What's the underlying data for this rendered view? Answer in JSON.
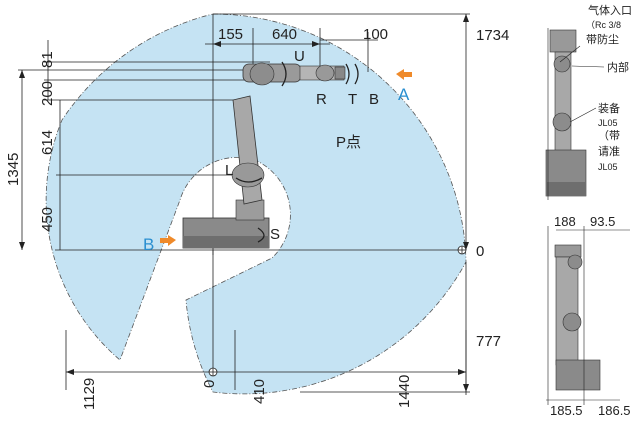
{
  "dimensions": {
    "d155": "155",
    "d640": "640",
    "d100": "100",
    "d1734": "1734",
    "d81": "81",
    "d200": "200",
    "d1345": "1345",
    "d614": "614",
    "d450": "450",
    "d0_right": "0",
    "d777": "777",
    "d1129": "1129",
    "d0_bottom": "0",
    "d410": "410",
    "d1440": "1440",
    "d188": "188",
    "d93_5": "93.5",
    "d185_5": "185.5",
    "d186_5": "186.5"
  },
  "axis_labels": {
    "U": "U",
    "R": "R",
    "T": "T",
    "B": "B",
    "L": "L",
    "S": "S",
    "A": "A",
    "B_left": "B",
    "P_point": "P点"
  },
  "notes": {
    "line1": "气体入口",
    "line2": "（Rc 3/8",
    "line3": "带防尘",
    "line4": "内部",
    "line5": "装备",
    "line6": "JL05",
    "line7": "（带",
    "line8": "请准",
    "line9": "JL05"
  },
  "colors": {
    "envelope_fill": "#c5e3f3",
    "accent_blue": "#2a8fd0",
    "accent_orange": "#ef8a2a",
    "line": "#222222"
  }
}
